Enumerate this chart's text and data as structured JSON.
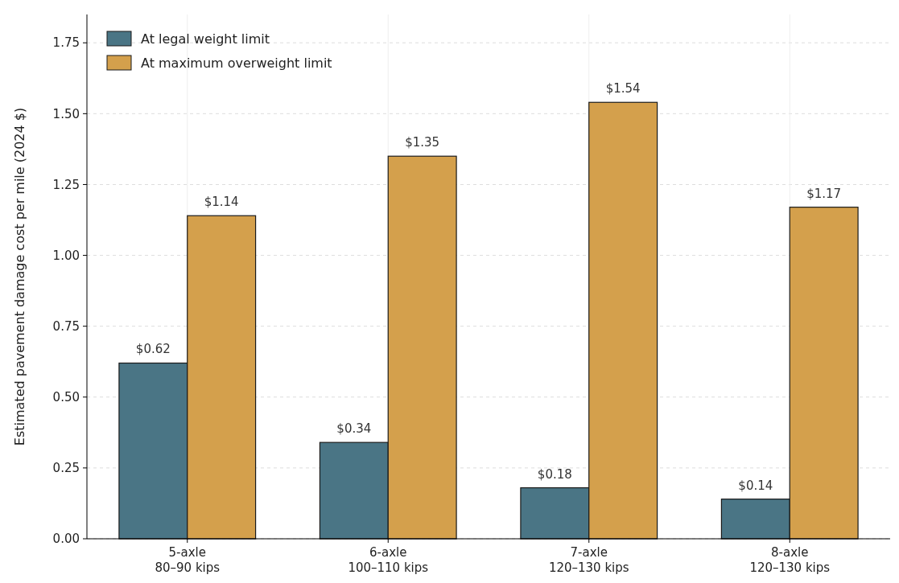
{
  "chart_data": {
    "type": "bar",
    "ylabel": "Estimated pavement damage cost per mile (2024 $)",
    "categories": [
      "5-axle\n80–90 kips",
      "6-axle\n100–110 kips",
      "7-axle\n120–130 kips",
      "8-axle\n120–130 kips"
    ],
    "series": [
      {
        "name": "At legal weight limit",
        "color": "#4a7585",
        "values": [
          0.62,
          0.34,
          0.18,
          0.14
        ],
        "value_labels": [
          "$0.62",
          "$0.34",
          "$0.18",
          "$0.14"
        ]
      },
      {
        "name": "At maximum overweight limit",
        "color": "#d4a04c",
        "values": [
          1.14,
          1.35,
          1.54,
          1.17
        ],
        "value_labels": [
          "$1.14",
          "$1.35",
          "$1.54",
          "$1.17"
        ]
      }
    ],
    "ylim": [
      0,
      1.85
    ],
    "yticks": [
      "0.00",
      "0.25",
      "0.50",
      "0.75",
      "1.00",
      "1.25",
      "1.50",
      "1.75"
    ],
    "grid": true,
    "legend": "top left"
  }
}
